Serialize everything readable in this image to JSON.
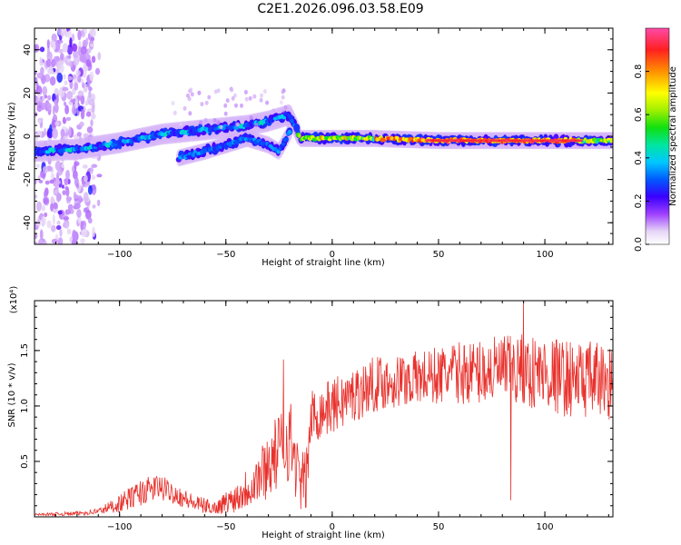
{
  "title": "C2E1.2026.096.03.58.E09",
  "chart_data": [
    {
      "type": "heatmap",
      "title": "C2E1.2026.096.03.58.E09",
      "xlabel": "Height of straight line (km)",
      "ylabel": "Frequency (Hz)",
      "xlim": [
        -140,
        132
      ],
      "ylim": [
        -50,
        50
      ],
      "x_ticks": [
        -100,
        -50,
        0,
        50,
        100
      ],
      "y_ticks": [
        -40,
        -20,
        0,
        20,
        40
      ],
      "colorbar": {
        "label": "Normalized spectral amplitude",
        "range": [
          0,
          1
        ],
        "ticks": [
          0.0,
          0.2,
          0.4,
          0.6,
          0.8
        ]
      },
      "ridge": {
        "x": [
          -140,
          -120,
          -100,
          -80,
          -70,
          -60,
          -50,
          -40,
          -30,
          -20,
          -15,
          -10,
          0,
          20,
          50,
          80,
          100,
          132
        ],
        "frequency": [
          -7,
          -6,
          -3,
          1,
          2,
          3,
          4,
          5,
          7,
          10,
          -1,
          -1,
          -1,
          -1,
          -2,
          -2,
          -2,
          -2
        ]
      },
      "secondary_ridge": {
        "x": [
          -72,
          -60,
          -50,
          -40,
          -30,
          -25,
          -20
        ],
        "frequency": [
          -10,
          -7,
          -4,
          -1,
          -4,
          -7,
          2
        ]
      },
      "noise_region_x": [
        -140,
        -112
      ]
    },
    {
      "type": "line",
      "xlabel": "Height of straight line (km)",
      "ylabel": "SNR (10 * v/v)",
      "y_multiplier": "(x10⁴)",
      "xlim": [
        -140,
        132
      ],
      "ylim": [
        0,
        1.95
      ],
      "x_ticks": [
        -100,
        -50,
        0,
        50,
        100
      ],
      "y_ticks": [
        0.5,
        1.0,
        1.5
      ],
      "color": "#e8312c",
      "series": [
        {
          "name": "SNR",
          "trend_x": [
            -140,
            -120,
            -110,
            -100,
            -90,
            -82,
            -75,
            -65,
            -55,
            -45,
            -35,
            -25,
            -20,
            -15,
            -12,
            -10,
            -5,
            0,
            10,
            20,
            40,
            60,
            80,
            100,
            110,
            132
          ],
          "trend_y": [
            0.02,
            0.03,
            0.05,
            0.12,
            0.22,
            0.27,
            0.22,
            0.12,
            0.08,
            0.18,
            0.35,
            0.6,
            0.72,
            0.3,
            0.35,
            0.9,
            0.95,
            1.0,
            1.1,
            1.2,
            1.25,
            1.3,
            1.32,
            1.3,
            1.25,
            1.22
          ],
          "spread": [
            0.01,
            0.02,
            0.03,
            0.08,
            0.12,
            0.12,
            0.1,
            0.08,
            0.06,
            0.14,
            0.25,
            0.35,
            0.4,
            0.25,
            0.3,
            0.25,
            0.25,
            0.25,
            0.25,
            0.25,
            0.25,
            0.28,
            0.32,
            0.35,
            0.35,
            0.35
          ],
          "notable_points": [
            {
              "x": 84,
              "y": 0.15
            },
            {
              "x": 90,
              "y": 1.95
            },
            {
              "x": -23,
              "y": 1.42
            }
          ]
        }
      ]
    }
  ]
}
